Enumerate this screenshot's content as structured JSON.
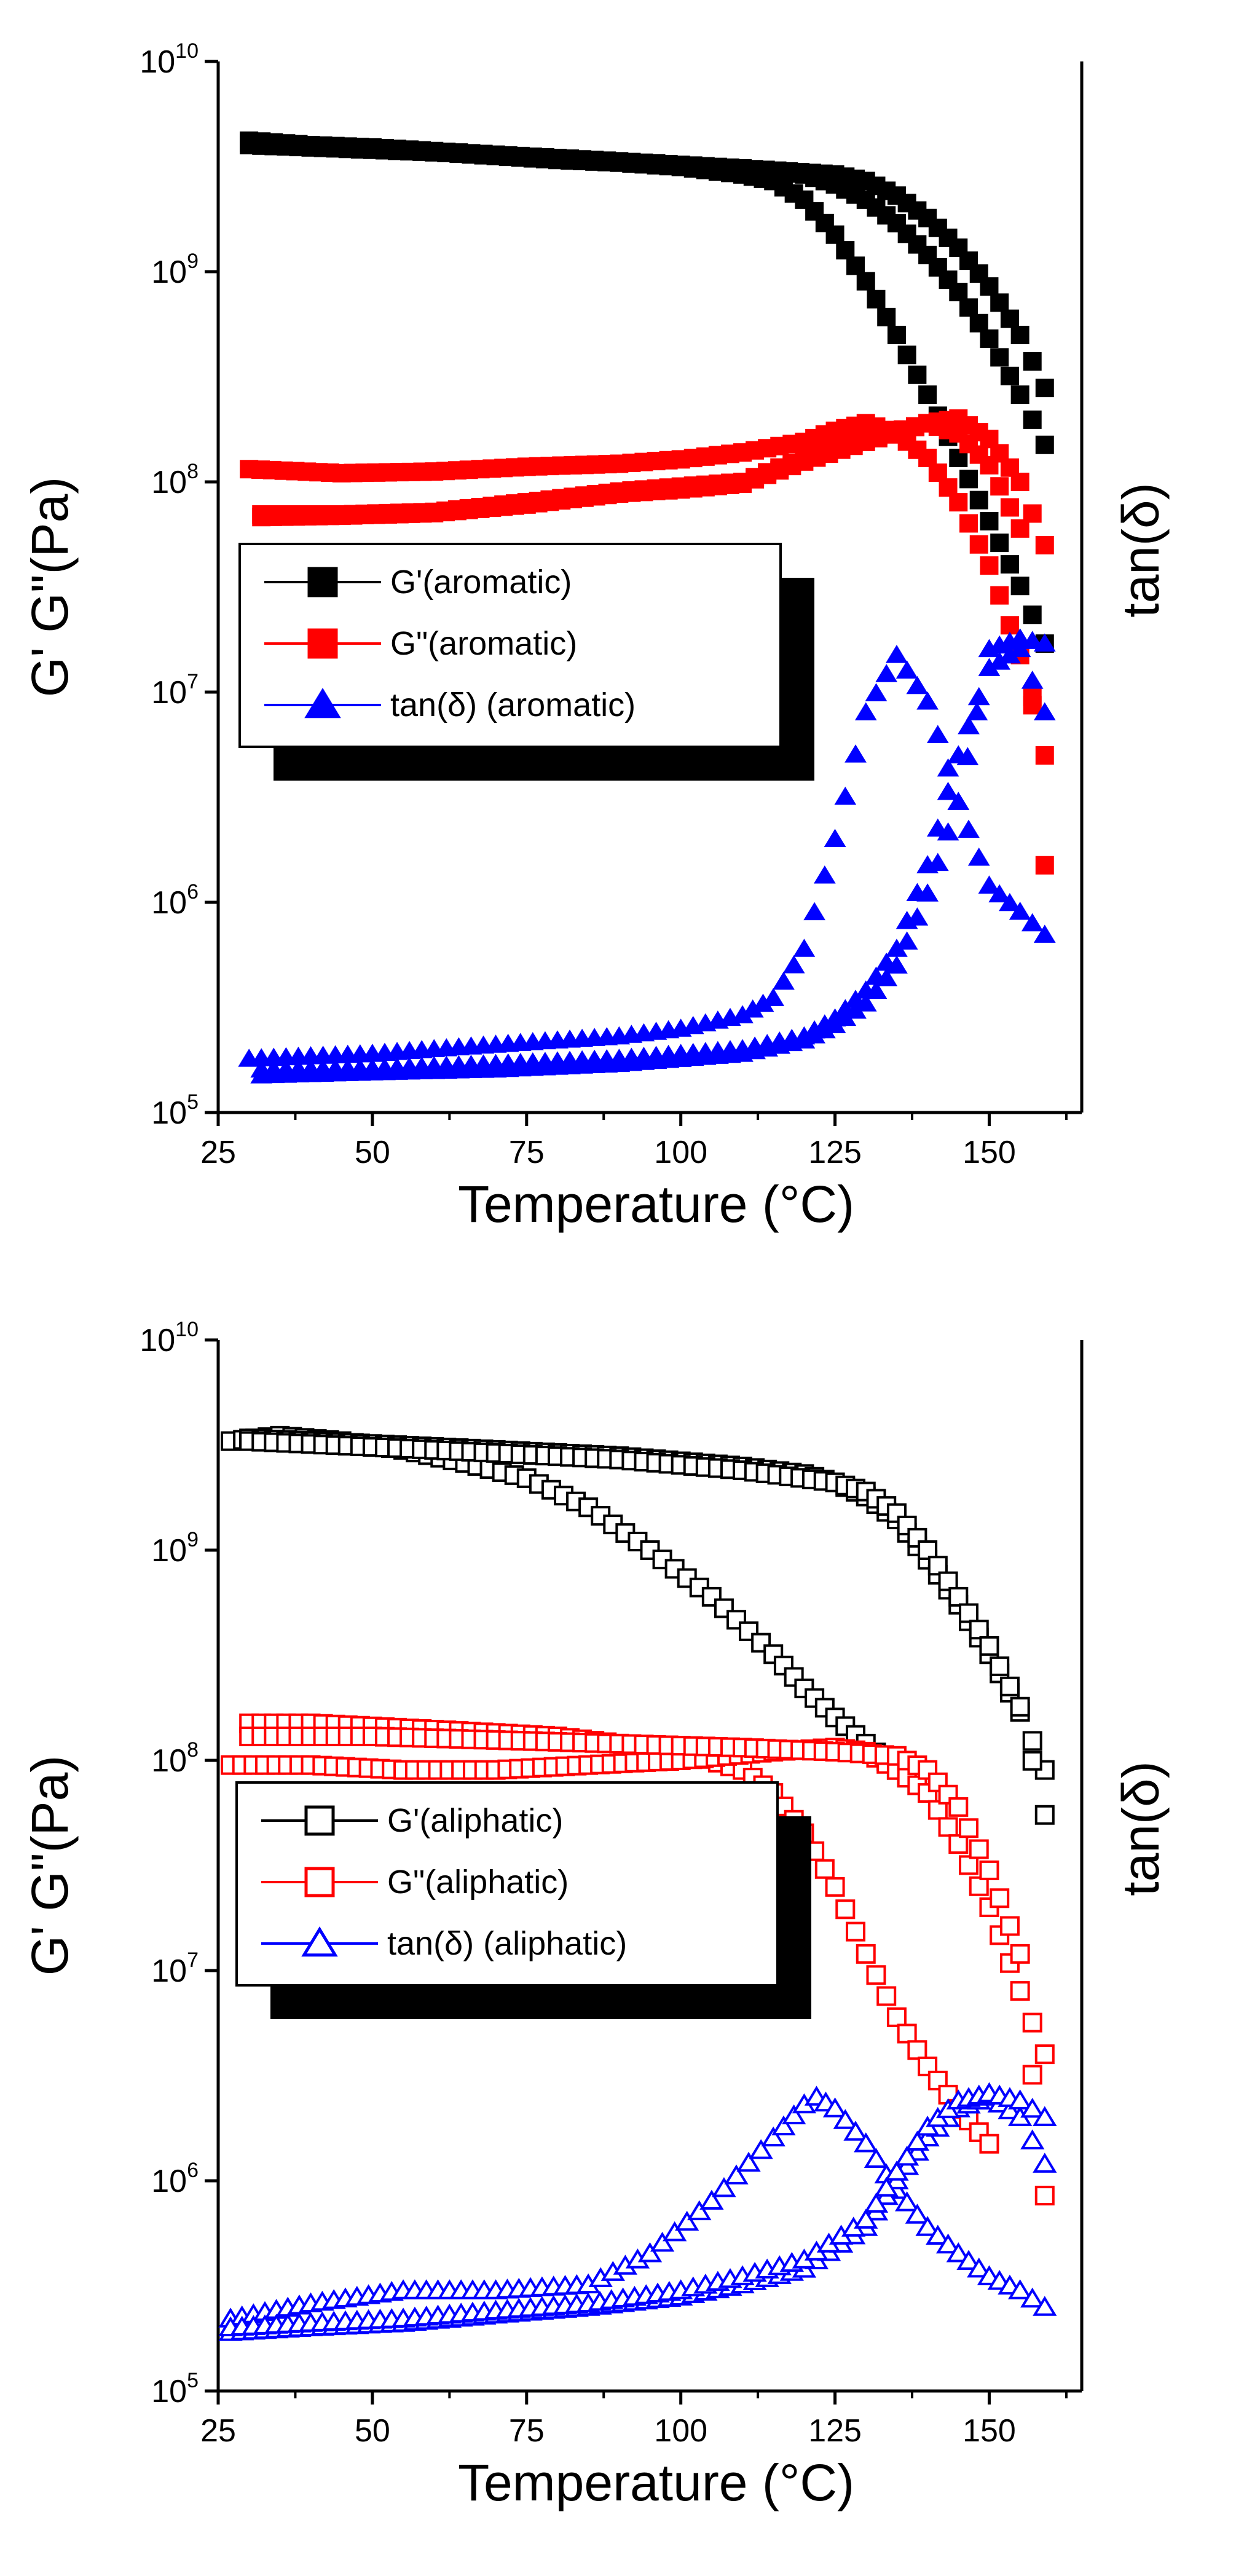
{
  "chart_data": [
    {
      "type": "scatter",
      "id": "aromatic",
      "title": "",
      "xlabel": "Temperature (°C)",
      "ylabel": "G' G\"(Pa)",
      "y2label": "tan(δ)",
      "xlim": [
        25,
        165
      ],
      "ylim": [
        100000,
        10000000000
      ],
      "y_scale": "log",
      "x_ticks": [
        25,
        50,
        75,
        100,
        125,
        150
      ],
      "x_tick_labels": [
        "25",
        "50",
        "75",
        "100",
        "125",
        "150"
      ],
      "y_ticks": [
        100000,
        1000000,
        10000000,
        100000000,
        1000000000,
        10000000000
      ],
      "y_tick_labels": [
        {
          "base": "10",
          "exp": "5"
        },
        {
          "base": "10",
          "exp": "6"
        },
        {
          "base": "10",
          "exp": "7"
        },
        {
          "base": "10",
          "exp": "8"
        },
        {
          "base": "10",
          "exp": "9"
        },
        {
          "base": "10",
          "exp": "10"
        }
      ],
      "legend_position": "middle-left",
      "series": [
        {
          "name": "G'(aromatic)",
          "color": "#000000",
          "marker": "square",
          "filled": true,
          "curves": [
            {
              "x": [
                30,
                40,
                50,
                60,
                70,
                80,
                90,
                100,
                110,
                115,
                120,
                125,
                130,
                135,
                140,
                145,
                150,
                155,
                159
              ],
              "y": [
                4200000000.0,
                4000000000.0,
                3850000000.0,
                3700000000.0,
                3550000000.0,
                3400000000.0,
                3300000000.0,
                3150000000.0,
                2900000000.0,
                2700000000.0,
                2200000000.0,
                1500000000.0,
                900000000.0,
                500000000.0,
                260000000.0,
                130000000.0,
                65000000.0,
                32000000.0,
                17000000.0
              ]
            },
            {
              "x": [
                30,
                50,
                70,
                90,
                110,
                120,
                125,
                130,
                135,
                140,
                145,
                150,
                155,
                159
              ],
              "y": [
                4100000000.0,
                3900000000.0,
                3600000000.0,
                3300000000.0,
                3050000000.0,
                2900000000.0,
                2600000000.0,
                2200000000.0,
                1700000000.0,
                1200000000.0,
                800000000.0,
                480000000.0,
                260000000.0,
                150000000.0
              ]
            },
            {
              "x": [
                30,
                50,
                70,
                90,
                110,
                125,
                130,
                135,
                140,
                145,
                150,
                155,
                159
              ],
              "y": [
                4000000000.0,
                3800000000.0,
                3600000000.0,
                3350000000.0,
                3100000000.0,
                2900000000.0,
                2700000000.0,
                2300000000.0,
                1800000000.0,
                1300000000.0,
                850000000.0,
                500000000.0,
                280000000.0
              ]
            }
          ]
        },
        {
          "name": "G\"(aromatic)",
          "color": "#ff0000",
          "marker": "square",
          "filled": true,
          "curves": [
            {
              "x": [
                30,
                45,
                60,
                75,
                90,
                100,
                110,
                120,
                125,
                130,
                135,
                140,
                145,
                150,
                155,
                159
              ],
              "y": [
                115000000.0,
                110000000.0,
                112000000.0,
                118000000.0,
                122000000.0,
                128000000.0,
                138000000.0,
                155000000.0,
                175000000.0,
                190000000.0,
                170000000.0,
                130000000.0,
                80000000.0,
                40000000.0,
                15000000.0,
                5000000.0
              ]
            },
            {
              "x": [
                32,
                45,
                60,
                75,
                90,
                100,
                110,
                120,
                130,
                140,
                145,
                150,
                155,
                159
              ],
              "y": [
                70000000.0,
                70000000.0,
                72000000.0,
                80000000.0,
                90000000.0,
                95000000.0,
                100000000.0,
                130000000.0,
                160000000.0,
                190000000.0,
                170000000.0,
                120000000.0,
                60000000.0,
                1500000.0
              ]
            },
            {
              "x": [
                32,
                45,
                60,
                75,
                90,
                100,
                110,
                120,
                130,
                140,
                145,
                150,
                155,
                159
              ],
              "y": [
                68000000.0,
                69000000.0,
                71000000.0,
                78000000.0,
                88000000.0,
                92000000.0,
                98000000.0,
                125000000.0,
                155000000.0,
                190000000.0,
                200000000.0,
                160000000.0,
                100000000.0,
                50000000.0
              ]
            }
          ]
        },
        {
          "name": "tan(δ) (aromatic)",
          "color": "#0000ff",
          "marker": "triangle",
          "filled": true,
          "curves": [
            {
              "x": [
                30,
                40,
                50,
                60,
                70,
                80,
                90,
                100,
                110,
                115,
                120,
                125,
                130,
                135,
                140,
                145,
                150,
                155,
                159
              ],
              "y": [
                180000.0,
                185000.0,
                190000.0,
                200000.0,
                210000.0,
                220000.0,
                230000.0,
                250000.0,
                290000.0,
                350000.0,
                600000.0,
                2000000.0,
                8000000.0,
                15000000.0,
                9000000.0,
                3000000.0,
                1200000.0,
                900000.0,
                700000.0
              ]
            },
            {
              "x": [
                32,
                50,
                70,
                90,
                110,
                120,
                125,
                130,
                135,
                140,
                145,
                150,
                155,
                159
              ],
              "y": [
                160000.0,
                162000.0,
                170000.0,
                180000.0,
                200000.0,
                230000.0,
                280000.0,
                380000.0,
                600000.0,
                1500000.0,
                5000000.0,
                13000000.0,
                16000000.0,
                8000000.0
              ]
            },
            {
              "x": [
                32,
                50,
                70,
                90,
                110,
                120,
                125,
                130,
                135,
                140,
                145,
                148,
                150,
                155,
                159
              ],
              "y": [
                150000.0,
                155000.0,
                160000.0,
                170000.0,
                190000.0,
                220000.0,
                260000.0,
                330000.0,
                500000.0,
                1100000.0,
                3000000.0,
                8000000.0,
                16000000.0,
                18000000.0,
                17000000.0
              ]
            }
          ]
        }
      ]
    },
    {
      "type": "scatter",
      "id": "aliphatic",
      "title": "",
      "xlabel": "Temperature (°C)",
      "ylabel": "G' G\"(Pa)",
      "y2label": "tan(δ)",
      "xlim": [
        25,
        165
      ],
      "ylim": [
        100000,
        10000000000
      ],
      "y_scale": "log",
      "x_ticks": [
        25,
        50,
        75,
        100,
        125,
        150
      ],
      "x_tick_labels": [
        "25",
        "50",
        "75",
        "100",
        "125",
        "150"
      ],
      "y_ticks": [
        100000,
        1000000,
        10000000,
        100000000,
        1000000000,
        10000000000
      ],
      "y_tick_labels": [
        {
          "base": "10",
          "exp": "5"
        },
        {
          "base": "10",
          "exp": "6"
        },
        {
          "base": "10",
          "exp": "7"
        },
        {
          "base": "10",
          "exp": "8"
        },
        {
          "base": "10",
          "exp": "9"
        },
        {
          "base": "10",
          "exp": "10"
        }
      ],
      "legend_position": "middle-left",
      "series": [
        {
          "name": "G'(aliphatic)",
          "color": "#000000",
          "marker": "square",
          "filled": false,
          "curves": [
            {
              "x": [
                27,
                35,
                45,
                55,
                65,
                75,
                85,
                95,
                105,
                115,
                120,
                125,
                130,
                135,
                140
              ],
              "y": [
                3300000000.0,
                3500000000.0,
                3300000000.0,
                3000000000.0,
                2600000000.0,
                2200000000.0,
                1600000000.0,
                1000000000.0,
                600000000.0,
                320000000.0,
                220000000.0,
                160000000.0,
                120000000.0,
                90000000.0,
                70000000.0
              ]
            },
            {
              "x": [
                30,
                50,
                70,
                90,
                110,
                120,
                125,
                130,
                135,
                140,
                145,
                150,
                155,
                159
              ],
              "y": [
                3400000000.0,
                3200000000.0,
                3000000000.0,
                2800000000.0,
                2500000000.0,
                2300000000.0,
                2100000000.0,
                1800000000.0,
                1400000000.0,
                900000000.0,
                550000000.0,
                320000000.0,
                170000000.0,
                90000000.0
              ]
            },
            {
              "x": [
                30,
                50,
                70,
                90,
                110,
                125,
                130,
                135,
                140,
                145,
                150,
                155,
                159
              ],
              "y": [
                3300000000.0,
                3100000000.0,
                2900000000.0,
                2700000000.0,
                2400000000.0,
                2100000000.0,
                1900000000.0,
                1500000000.0,
                1000000000.0,
                600000000.0,
                350000000.0,
                180000000.0,
                55000000.0
              ]
            }
          ]
        },
        {
          "name": "G\"(aliphatic)",
          "color": "#ff0000",
          "marker": "square",
          "filled": false,
          "curves": [
            {
              "x": [
                30,
                40,
                50,
                60,
                70,
                80,
                90,
                100,
                110,
                115,
                120,
                125,
                130,
                135,
                140,
                145,
                150
              ],
              "y": [
                150000000.0,
                150000000.0,
                145000000.0,
                140000000.0,
                135000000.0,
                130000000.0,
                120000000.0,
                110000000.0,
                90000000.0,
                70000000.0,
                45000000.0,
                25000000.0,
                12000000.0,
                6000000.0,
                3500000.0,
                2200000.0,
                1500000.0
              ]
            },
            {
              "x": [
                27,
                40,
                55,
                70,
                85,
                100,
                115,
                125,
                130,
                135,
                140,
                145,
                150,
                155,
                159
              ],
              "y": [
                95000000.0,
                95000000.0,
                90000000.0,
                90000000.0,
                95000000.0,
                100000000.0,
                110000000.0,
                115000000.0,
                110000000.0,
                90000000.0,
                70000000.0,
                40000000.0,
                20000000.0,
                8000000.0,
                4000000.0
              ]
            },
            {
              "x": [
                30,
                50,
                70,
                90,
                110,
                125,
                135,
                140,
                145,
                150,
                155,
                159
              ],
              "y": [
                130000000.0,
                130000000.0,
                125000000.0,
                120000000.0,
                115000000.0,
                110000000.0,
                105000000.0,
                90000000.0,
                60000000.0,
                30000000.0,
                12000000.0,
                850000.0
              ]
            }
          ]
        },
        {
          "name": "tan(δ) (aliphatic)",
          "color": "#0000ff",
          "marker": "triangle",
          "filled": false,
          "curves": [
            {
              "x": [
                27,
                40,
                55,
                70,
                85,
                95,
                105,
                115,
                120,
                122,
                125,
                130,
                135,
                140,
                145,
                150,
                155,
                159
              ],
              "y": [
                220000.0,
                260000.0,
                300000.0,
                300000.0,
                320000.0,
                450000.0,
                800000.0,
                1600000.0,
                2300000.0,
                2500000.0,
                2200000.0,
                1500000.0,
                900000.0,
                600000.0,
                450000.0,
                350000.0,
                300000.0,
                250000.0
              ]
            },
            {
              "x": [
                27,
                40,
                55,
                70,
                85,
                100,
                110,
                120,
                130,
                135,
                140,
                145,
                150,
                155,
                159
              ],
              "y": [
                190000.0,
                200000.0,
                210000.0,
                230000.0,
                250000.0,
                280000.0,
                320000.0,
                380000.0,
                600000.0,
                1000000.0,
                1600000.0,
                2200000.0,
                2500000.0,
                2000000.0,
                1200000.0
              ]
            },
            {
              "x": [
                27,
                40,
                55,
                70,
                85,
                100,
                110,
                120,
                130,
                135,
                140,
                145,
                150,
                155,
                159
              ],
              "y": [
                200000.0,
                210000.0,
                220000.0,
                240000.0,
                260000.0,
                300000.0,
                350000.0,
                420000.0,
                650000.0,
                1100000.0,
                1800000.0,
                2400000.0,
                2600000.0,
                2400000.0,
                2000000.0
              ]
            }
          ]
        }
      ]
    }
  ]
}
